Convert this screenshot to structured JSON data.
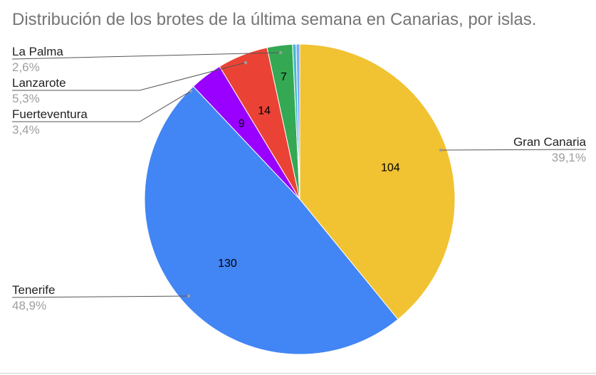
{
  "chart_data": {
    "type": "pie",
    "title": "Distribución de los brotes de la última semana en Canarias, por islas.",
    "slices": [
      {
        "name": "Gran Canaria",
        "value": 104,
        "percent_label": "39,1%",
        "color": "#f1c232",
        "value_label": "104"
      },
      {
        "name": "Tenerife",
        "value": 130,
        "percent_label": "48,9%",
        "color": "#4285f4",
        "value_label": "130"
      },
      {
        "name": "Fuerteventura",
        "value": 9,
        "percent_label": "3,4%",
        "color": "#9900ff",
        "value_label": "9"
      },
      {
        "name": "Lanzarote",
        "value": 14,
        "percent_label": "5,3%",
        "color": "#ea4335",
        "value_label": "14"
      },
      {
        "name": "La Palma",
        "value": 7,
        "percent_label": "2,6%",
        "color": "#34a853",
        "value_label": "7"
      },
      {
        "name": "",
        "value": 1,
        "percent_label": "",
        "color": "#46bdc6",
        "value_label": ""
      },
      {
        "name": "",
        "value": 1,
        "percent_label": "",
        "color": "#7baaf7",
        "value_label": ""
      }
    ],
    "legend": "labels with leader lines"
  }
}
